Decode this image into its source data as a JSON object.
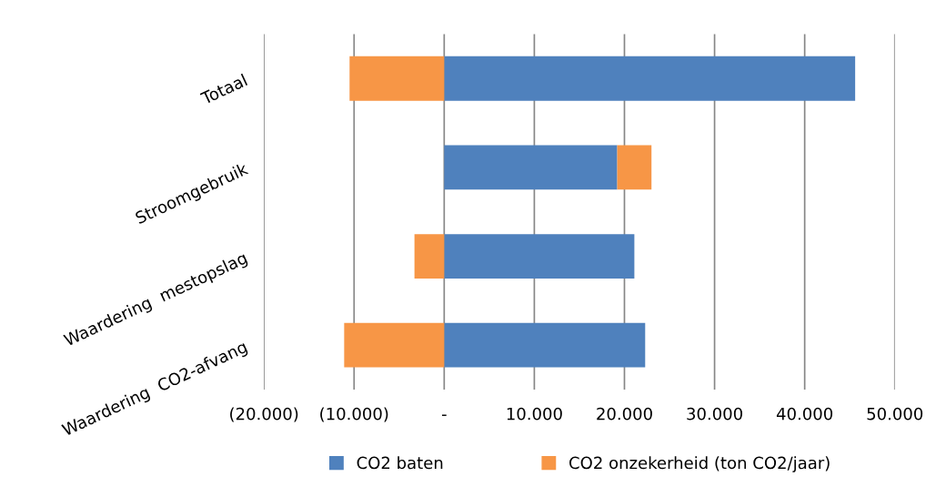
{
  "chart_data": {
    "type": "bar",
    "orientation": "horizontal",
    "stacked": true,
    "categories": [
      "Totaal",
      "Stroomgebruik",
      "Waardering  mestopslag",
      "Waardering  CO2-afvang"
    ],
    "series": [
      {
        "name": "CO2 baten",
        "color": "#4f81bd",
        "values": [
          45600,
          19200,
          21100,
          22300
        ]
      },
      {
        "name": "CO2 onzekerheid (ton CO2/jaar)",
        "color": "#f79646",
        "values": [
          -10500,
          3800,
          -3300,
          -11100
        ]
      }
    ],
    "xlim": [
      -20000,
      50000
    ],
    "xticks": [
      {
        "value": -20000,
        "label": "(20.000)"
      },
      {
        "value": -10000,
        "label": "(10.000)"
      },
      {
        "value": 0,
        "label": "-"
      },
      {
        "value": 10000,
        "label": "10.000"
      },
      {
        "value": 20000,
        "label": "20.000"
      },
      {
        "value": 30000,
        "label": "30.000"
      },
      {
        "value": 40000,
        "label": "40.000"
      },
      {
        "value": 50000,
        "label": "50.000"
      }
    ],
    "grid": "x",
    "legend": "bottom"
  }
}
